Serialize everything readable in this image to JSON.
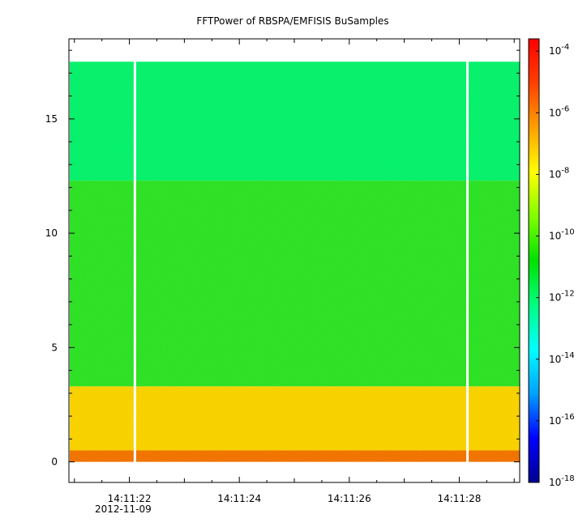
{
  "chart_data": {
    "type": "heatmap",
    "title": "FFTPower of RBSPA/EMFISIS  BuSamples",
    "x": {
      "ticks": [
        {
          "label": "14:11:22",
          "seconds": 22
        },
        {
          "label": "14:11:24",
          "seconds": 24
        },
        {
          "label": "14:11:26",
          "seconds": 26
        },
        {
          "label": "14:11:28",
          "seconds": 28
        }
      ],
      "date_label": "2012-11-09",
      "range_seconds": [
        20.9,
        29.1
      ],
      "minor_tick_step_seconds": 0.5
    },
    "y": {
      "ticks": [
        0,
        5,
        10,
        15
      ],
      "range": [
        -0.9,
        18.5
      ],
      "data_max": 17.5,
      "minor_tick_step": 1
    },
    "colorbar": {
      "ticks": [
        "-4",
        "-6",
        "-8",
        "-10",
        "-12",
        "-14",
        "-16",
        "-18"
      ],
      "tick_base": "10",
      "log_range": [
        -18,
        -3.6
      ],
      "scale": "log",
      "colormap": [
        "#000090",
        "#0000ff",
        "#00a0ff",
        "#00ffff",
        "#00ff80",
        "#00e000",
        "#80ff00",
        "#ffff00",
        "#ffa000",
        "#ff4000",
        "#ff0000"
      ]
    },
    "gaps_seconds": [
      22.1,
      28.15
    ],
    "bands": [
      {
        "freq_from": 12.3,
        "freq_to": 17.5,
        "log_power": -11.6,
        "color": "#00f070"
      },
      {
        "freq_from": 3.3,
        "freq_to": 12.3,
        "log_power": -10.6,
        "color": "#28e028"
      },
      {
        "freq_from": 0.5,
        "freq_to": 3.3,
        "log_power": -8.5,
        "color": "#f8d000"
      },
      {
        "freq_from": 0.0,
        "freq_to": 0.5,
        "log_power": -6.8,
        "color": "#f07000"
      }
    ],
    "grid": false,
    "legend": "none"
  }
}
